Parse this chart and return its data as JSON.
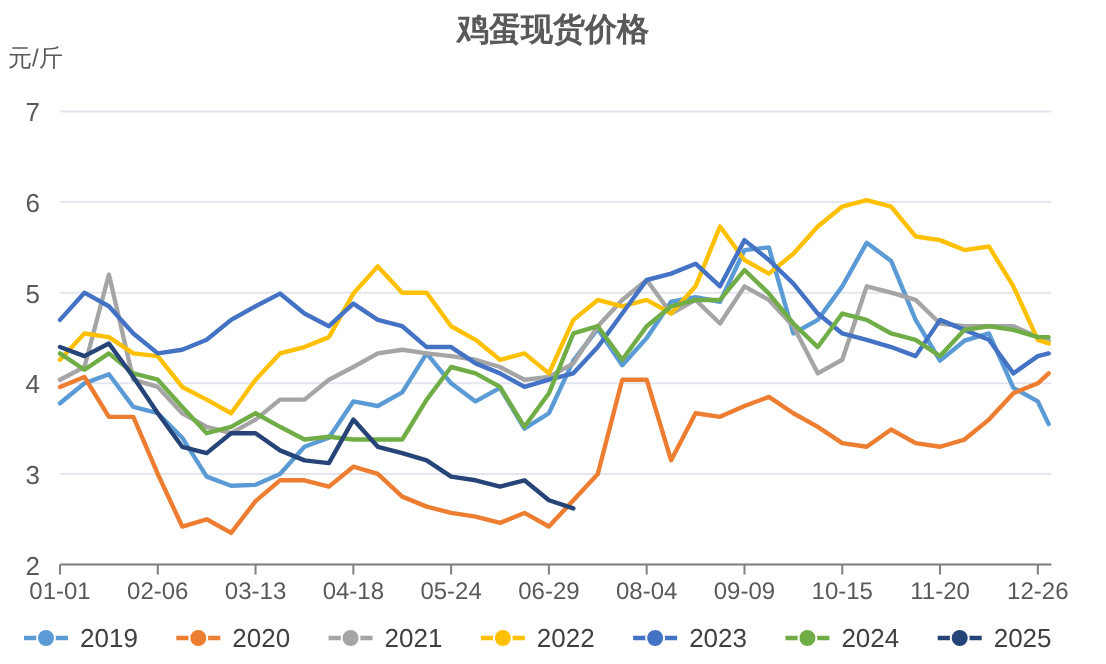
{
  "chart_data": {
    "type": "line",
    "title": "鸡蛋现货价格",
    "ylabel": "元/斤",
    "x": [
      "--01-01",
      "--01-10",
      "--01-19",
      "--01-28",
      "--02-06",
      "--02-15",
      "--02-24",
      "--03-04",
      "--03-13",
      "--03-22",
      "--03-31",
      "--04-09",
      "--04-18",
      "--04-27",
      "--05-06",
      "--05-15",
      "--05-24",
      "--06-02",
      "--06-11",
      "--06-20",
      "--06-29",
      "--07-08",
      "--07-17",
      "--07-26",
      "--08-04",
      "--08-13",
      "--08-22",
      "--08-31",
      "--09-09",
      "--09-18",
      "--09-27",
      "--10-06",
      "--10-15",
      "--10-24",
      "--11-02",
      "--11-11",
      "--11-20",
      "--11-29",
      "--12-08",
      "--12-17",
      "--12-26",
      "--12-30"
    ],
    "xlim": [
      "--01-01",
      "--12-31"
    ],
    "xticks": [
      {
        "value": "--01-01",
        "label": "01-01"
      },
      {
        "value": "--02-06",
        "label": "02-06"
      },
      {
        "value": "--03-13",
        "label": "03-13"
      },
      {
        "value": "--04-18",
        "label": "04-18"
      },
      {
        "value": "--05-24",
        "label": "05-24"
      },
      {
        "value": "--06-29",
        "label": "06-29"
      },
      {
        "value": "--08-04",
        "label": "08-04"
      },
      {
        "value": "--09-09",
        "label": "09-09"
      },
      {
        "value": "--10-15",
        "label": "10-15"
      },
      {
        "value": "--11-20",
        "label": "11-20"
      },
      {
        "value": "--12-26",
        "label": "12-26"
      }
    ],
    "ylim": [
      2,
      7
    ],
    "yticks": [
      2,
      3,
      4,
      5,
      6,
      7
    ],
    "grid": "y",
    "legend": "bottom",
    "series": [
      {
        "name": "2019",
        "color": "#5b9bd5",
        "values": [
          3.78,
          4.0,
          4.1,
          3.74,
          3.67,
          3.4,
          2.97,
          2.87,
          2.88,
          3.0,
          3.3,
          3.4,
          3.8,
          3.75,
          3.9,
          4.33,
          4.0,
          3.8,
          3.95,
          3.5,
          3.67,
          4.25,
          4.6,
          4.2,
          4.5,
          4.9,
          4.95,
          4.9,
          5.47,
          5.5,
          4.55,
          4.7,
          5.07,
          5.55,
          5.35,
          4.7,
          4.25,
          4.47,
          4.55,
          3.95,
          3.8,
          3.55
        ]
      },
      {
        "name": "2020",
        "color": "#ed7d31",
        "values": [
          3.96,
          4.07,
          3.63,
          3.63,
          3.0,
          2.42,
          2.5,
          2.35,
          2.7,
          2.93,
          2.93,
          2.86,
          3.08,
          3.0,
          2.75,
          2.64,
          2.57,
          2.53,
          2.46,
          2.57,
          2.42,
          2.71,
          3.0,
          4.04,
          4.04,
          3.15,
          3.67,
          3.63,
          3.75,
          3.85,
          3.67,
          3.52,
          3.34,
          3.3,
          3.49,
          3.34,
          3.3,
          3.38,
          3.6,
          3.89,
          4.0,
          4.11
        ]
      },
      {
        "name": "2021",
        "color": "#a5a5a5",
        "values": [
          4.04,
          4.18,
          5.2,
          4.04,
          3.96,
          3.67,
          3.52,
          3.45,
          3.6,
          3.82,
          3.82,
          4.04,
          4.18,
          4.33,
          4.37,
          4.33,
          4.3,
          4.26,
          4.18,
          4.04,
          4.07,
          4.22,
          4.63,
          4.92,
          5.14,
          4.77,
          4.92,
          4.66,
          5.07,
          4.92,
          4.63,
          4.11,
          4.26,
          5.07,
          5.0,
          4.92,
          4.66,
          4.63,
          4.63,
          4.63,
          4.51,
          4.47
        ]
      },
      {
        "name": "2022",
        "color": "#ffc000",
        "values": [
          4.26,
          4.55,
          4.51,
          4.33,
          4.3,
          3.96,
          3.82,
          3.67,
          4.04,
          4.33,
          4.4,
          4.51,
          4.99,
          5.29,
          5.0,
          5.0,
          4.63,
          4.48,
          4.26,
          4.33,
          4.11,
          4.7,
          4.92,
          4.85,
          4.92,
          4.77,
          5.07,
          5.73,
          5.36,
          5.21,
          5.43,
          5.73,
          5.95,
          6.02,
          5.95,
          5.62,
          5.58,
          5.47,
          5.51,
          5.07,
          4.48,
          4.44
        ]
      },
      {
        "name": "2023",
        "color": "#4472c4",
        "values": [
          4.7,
          5.0,
          4.85,
          4.55,
          4.33,
          4.37,
          4.48,
          4.7,
          4.85,
          4.99,
          4.77,
          4.63,
          4.88,
          4.7,
          4.63,
          4.4,
          4.4,
          4.22,
          4.11,
          3.96,
          4.04,
          4.11,
          4.4,
          4.77,
          5.14,
          5.21,
          5.32,
          5.07,
          5.58,
          5.36,
          5.1,
          4.77,
          4.55,
          4.48,
          4.4,
          4.3,
          4.7,
          4.59,
          4.48,
          4.11,
          4.3,
          4.33
        ]
      },
      {
        "name": "2024",
        "color": "#70ad47",
        "values": [
          4.33,
          4.15,
          4.33,
          4.11,
          4.04,
          3.74,
          3.45,
          3.52,
          3.67,
          3.52,
          3.38,
          3.41,
          3.38,
          3.38,
          3.38,
          3.82,
          4.18,
          4.11,
          3.96,
          3.52,
          3.89,
          4.55,
          4.63,
          4.26,
          4.63,
          4.85,
          4.92,
          4.92,
          5.25,
          4.99,
          4.66,
          4.4,
          4.77,
          4.7,
          4.55,
          4.48,
          4.3,
          4.59,
          4.63,
          4.59,
          4.51,
          4.51
        ]
      },
      {
        "name": "2025",
        "color": "#264478",
        "values": [
          4.4,
          4.3,
          4.44,
          4.07,
          3.67,
          3.3,
          3.23,
          3.45,
          3.45,
          3.26,
          3.15,
          3.12,
          3.6,
          3.3,
          3.23,
          3.15,
          2.97,
          2.93,
          2.86,
          2.93,
          2.71,
          2.62,
          null,
          null,
          null,
          null,
          null,
          null,
          null,
          null,
          null,
          null,
          null,
          null,
          null,
          null,
          null,
          null,
          null,
          null,
          null,
          null
        ]
      }
    ]
  }
}
